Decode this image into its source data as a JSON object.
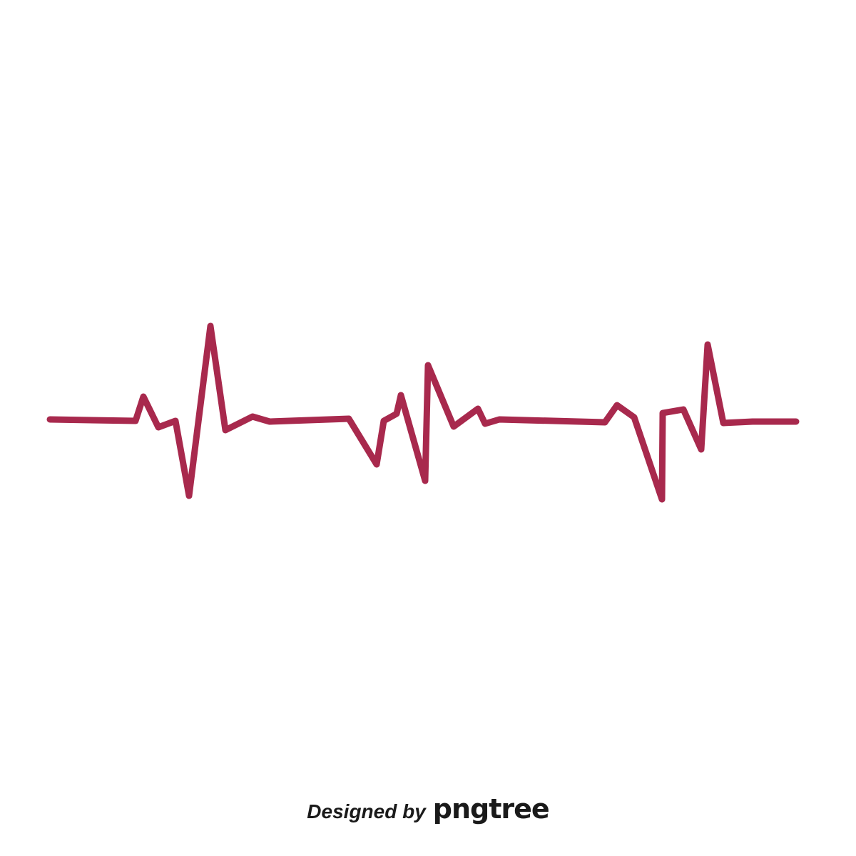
{
  "artwork": {
    "subject": "heartbeat-line",
    "stroke_color": "#a8294d",
    "background_color": "#ffffff"
  },
  "credit": {
    "prefix": "Designed by",
    "brand": "pngtree"
  }
}
